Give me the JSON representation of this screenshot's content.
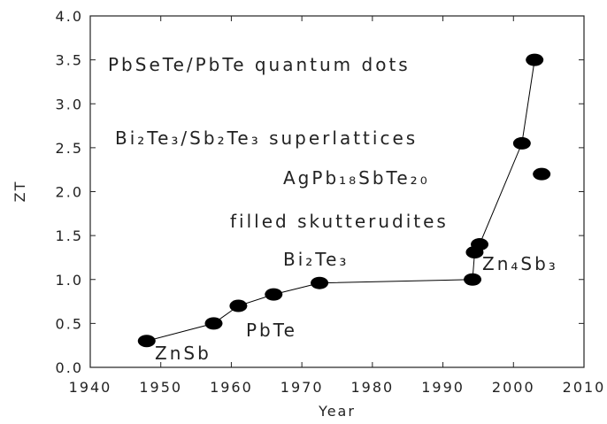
{
  "chart_data": {
    "type": "scatter",
    "xlabel": "Year",
    "ylabel": "ZT",
    "xlim": [
      1940,
      2010
    ],
    "xticks": [
      1940,
      1950,
      1960,
      1970,
      1980,
      1990,
      2000,
      2010
    ],
    "ylim": [
      0,
      4
    ],
    "yticks": [
      {
        "value": 0,
        "label": "0.0"
      },
      0.5,
      {
        "value": 1,
        "label": "1.0"
      },
      1.5,
      {
        "value": 2,
        "label": "2.0"
      },
      2.5,
      {
        "value": 3,
        "label": "3.0"
      },
      3.5,
      {
        "value": 4,
        "label": "4.0"
      }
    ],
    "series": [
      {
        "color": "#000000",
        "line": true,
        "x": [
          1948,
          1957.5,
          1961,
          1966,
          1972.5,
          1994.2,
          1994.5,
          1995.2,
          2001.2,
          2003
        ],
        "values": [
          0.3,
          0.5,
          0.7,
          0.83,
          0.96,
          1.0,
          1.31,
          1.4,
          2.55,
          3.5
        ]
      },
      {
        "color": "#000000",
        "line": false,
        "x": [
          2004
        ],
        "values": [
          2.2
        ]
      }
    ],
    "annotations": [
      "PbSeTe/PbTe quantum dots",
      "Bi₂Te₃/Sb₂Te₃ superlattices",
      "AgPb₁₈SbTe₂₀",
      "filled skutterudites",
      "Bi₂Te₃",
      "Zn₄Sb₃",
      "PbTe",
      "ZnSb"
    ]
  }
}
